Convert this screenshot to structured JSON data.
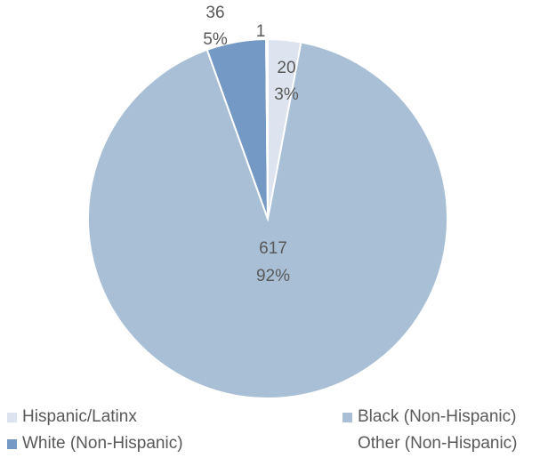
{
  "chart_data": {
    "type": "pie",
    "title": "",
    "start_angle_deg": 0,
    "direction": "clockwise",
    "slices": [
      {
        "label": "Hispanic/Latinx",
        "value": 20,
        "percent": "3%",
        "color": "#dde4ef"
      },
      {
        "label": "Black (Non-Hispanic)",
        "value": 617,
        "percent": "92%",
        "color": "#a9bfd6"
      },
      {
        "label": "White (Non-Hispanic)",
        "value": 36,
        "percent": "5%",
        "color": "#7399c4"
      },
      {
        "label": "Other (Non-Hispanic)",
        "value": 1,
        "percent": "",
        "color": "#ffffff"
      }
    ],
    "legend": {
      "position": "bottom",
      "entries": [
        "Hispanic/Latinx",
        "Black (Non-Hispanic)",
        "White (Non-Hispanic)",
        "Other (Non-Hispanic)"
      ]
    }
  }
}
